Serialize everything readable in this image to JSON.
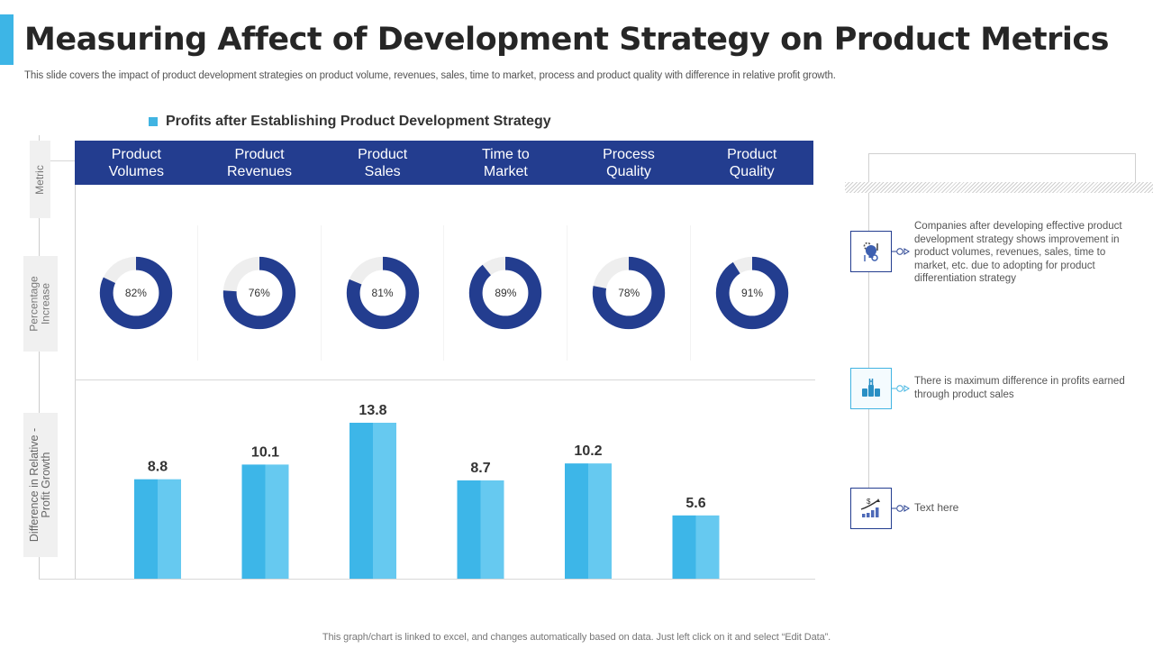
{
  "header": {
    "title": "Measuring Affect of Development Strategy on Product Metrics",
    "subtitle": "This slide covers the impact of product development strategies on product volume, revenues, sales, time to market, process and product quality with difference in relative profit growth."
  },
  "colors": {
    "accent": "#3db5e6",
    "header_bg": "#233d8f",
    "donut_fill": "#233d8f",
    "donut_track": "#eeeeee",
    "bar_dark": "#3db6e8",
    "bar_light": "#66c9f0"
  },
  "legend": {
    "label": "Profits after Establishing Product Development Strategy"
  },
  "row_labels": {
    "metric": "Metric",
    "percentage": [
      "Percentage",
      "Increase"
    ],
    "difference": [
      "Difference in Relative -",
      "Profit Growth"
    ]
  },
  "chart_data": {
    "type": "table",
    "title": "Profits after Establishing Product Development Strategy",
    "categories": [
      [
        "Product",
        "Volumes"
      ],
      [
        "Product",
        "Revenues"
      ],
      [
        "Product",
        "Sales"
      ],
      [
        "Time to",
        "Market"
      ],
      [
        "Process",
        "Quality"
      ],
      [
        "Product",
        "Quality"
      ]
    ],
    "series": [
      {
        "name": "Percentage Increase",
        "type": "pie",
        "values": [
          82,
          76,
          81,
          89,
          78,
          91
        ],
        "labels": [
          "82%",
          "76%",
          "81%",
          "89%",
          "78%",
          "91%"
        ],
        "unit": "%"
      },
      {
        "name": "Difference in Relative - Profit Growth",
        "type": "bar",
        "values": [
          8.8,
          10.1,
          13.8,
          8.7,
          10.2,
          5.6
        ],
        "labels": [
          "8.8",
          "10.1",
          "13.8",
          "8.7",
          "10.2",
          "5.6"
        ],
        "ylim": [
          0,
          16
        ]
      }
    ],
    "legend": "top-left",
    "grid": false
  },
  "notes": [
    {
      "icon": "lightbulb-gear-icon",
      "text": "Companies after developing effective product development strategy shows improvement in product volumes, revenues, sales, time to market, etc. due to adopting for product differentiation strategy"
    },
    {
      "icon": "hands-teamwork-icon",
      "text": "There is maximum difference in profits earned through product sales"
    },
    {
      "icon": "dollar-growth-chart-icon",
      "text": "Text here"
    }
  ],
  "footer": "This graph/chart is linked to excel,  and changes automatically based on data. Just left click on it and select “Edit Data”."
}
